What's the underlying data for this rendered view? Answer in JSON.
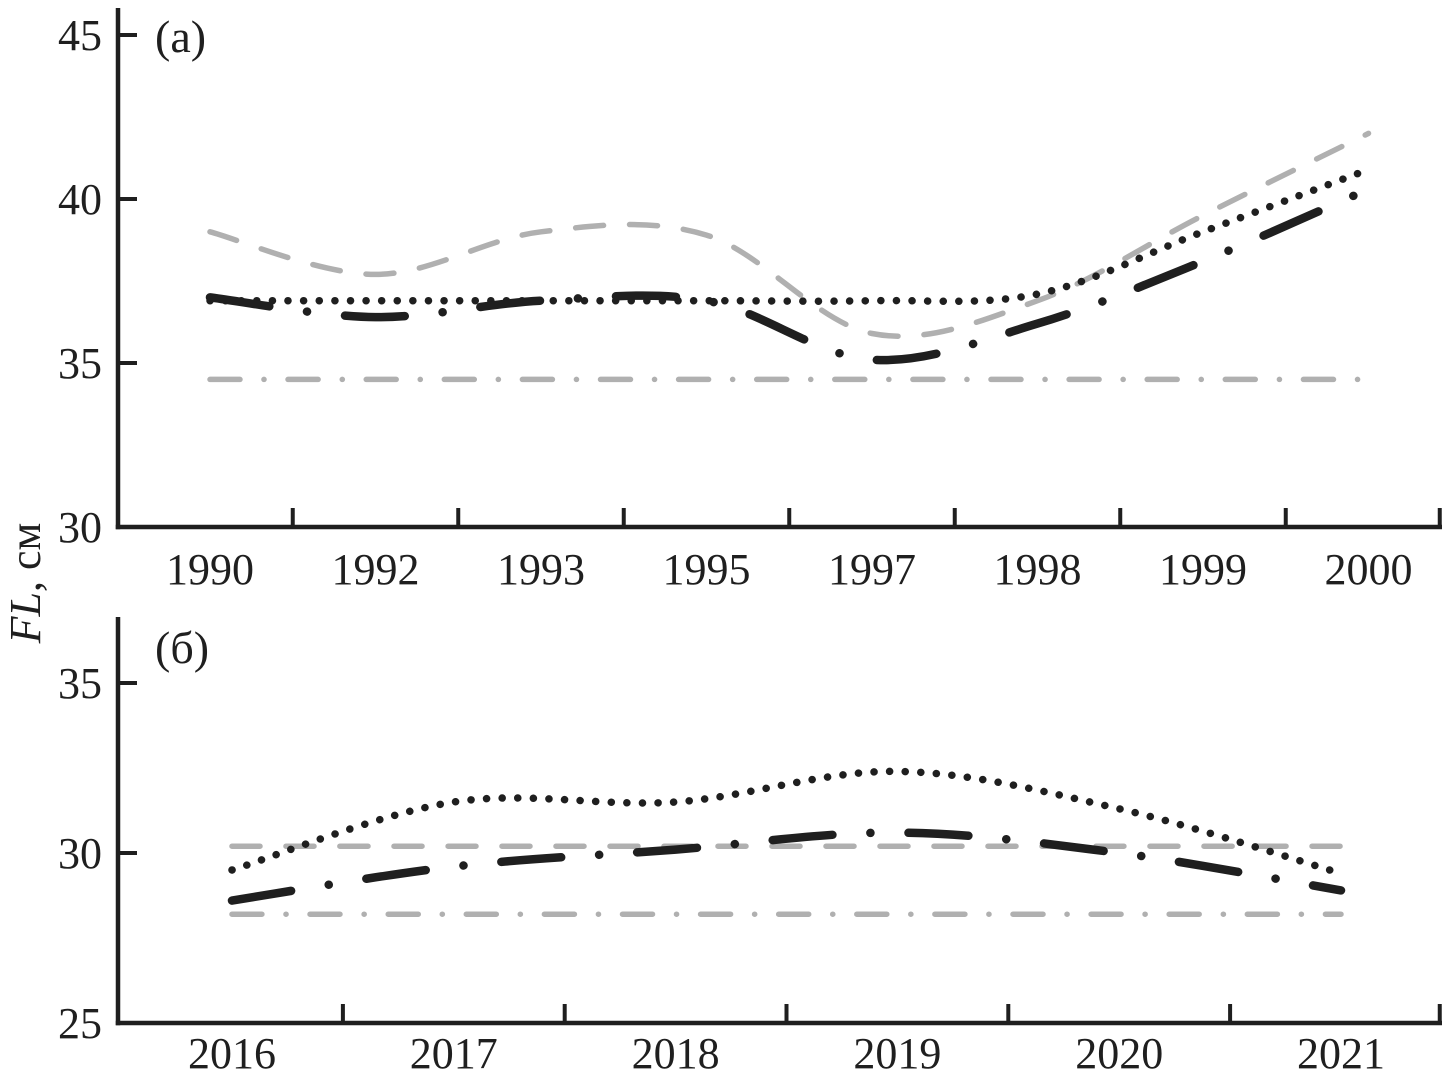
{
  "figure": {
    "y_axis_label": {
      "italic_part": "FL",
      "regular_part": ", см"
    },
    "background": "#ffffff",
    "colors": {
      "black": "#1f1f1f",
      "gray": "#b0b0b0"
    }
  },
  "chart_data": [
    {
      "type": "line",
      "panel_label": "(a)",
      "ylabel": "FL, см",
      "xlabel": "",
      "grid": false,
      "legend": "none",
      "categories": [
        "1990",
        "1992",
        "1993",
        "1995",
        "1997",
        "1998",
        "1999",
        "2000"
      ],
      "y_ticks": [
        30,
        35,
        40,
        45
      ],
      "ylim": [
        30,
        45.8
      ],
      "series": [
        {
          "name": "gray-dashed-line",
          "style": "dashed",
          "color": "gray",
          "values": [
            39.0,
            37.7,
            39.0,
            38.9,
            35.9,
            36.9,
            39.5,
            42.0
          ]
        },
        {
          "name": "gray-dash-dot-line",
          "style": "dashdot",
          "color": "gray",
          "values": [
            34.5,
            34.5,
            34.5,
            34.5,
            34.5,
            34.5,
            34.5,
            34.5
          ]
        },
        {
          "name": "black-dotted-line",
          "style": "dotted",
          "color": "black",
          "values": [
            36.9,
            36.9,
            36.9,
            36.9,
            36.9,
            37.1,
            39.0,
            40.9
          ]
        },
        {
          "name": "black-long-dash-line",
          "style": "dashdot",
          "color": "black",
          "values": [
            37.0,
            36.4,
            36.9,
            36.9,
            35.1,
            36.2,
            38.1,
            40.3
          ]
        }
      ]
    },
    {
      "type": "line",
      "panel_label": "(б)",
      "ylabel": "FL, см",
      "xlabel": "",
      "grid": false,
      "legend": "none",
      "categories": [
        "2016",
        "2017",
        "2018",
        "2019",
        "2020",
        "2021"
      ],
      "y_ticks": [
        25,
        30,
        35
      ],
      "ylim": [
        25,
        36.9
      ],
      "series": [
        {
          "name": "gray-dashed-line",
          "style": "dashed",
          "color": "gray",
          "values": [
            30.2,
            30.2,
            30.2,
            30.2,
            30.2,
            30.2
          ]
        },
        {
          "name": "gray-dash-dot-line",
          "style": "dashdot",
          "color": "gray",
          "values": [
            28.2,
            28.2,
            28.2,
            28.2,
            28.2,
            28.2
          ]
        },
        {
          "name": "black-dotted-line",
          "style": "dotted",
          "color": "black",
          "values": [
            29.5,
            31.5,
            31.5,
            32.4,
            31.3,
            29.4
          ]
        },
        {
          "name": "black-long-dash-line",
          "style": "dashdot",
          "color": "black",
          "values": [
            28.6,
            29.6,
            30.1,
            30.6,
            30.0,
            28.9
          ]
        }
      ]
    }
  ]
}
